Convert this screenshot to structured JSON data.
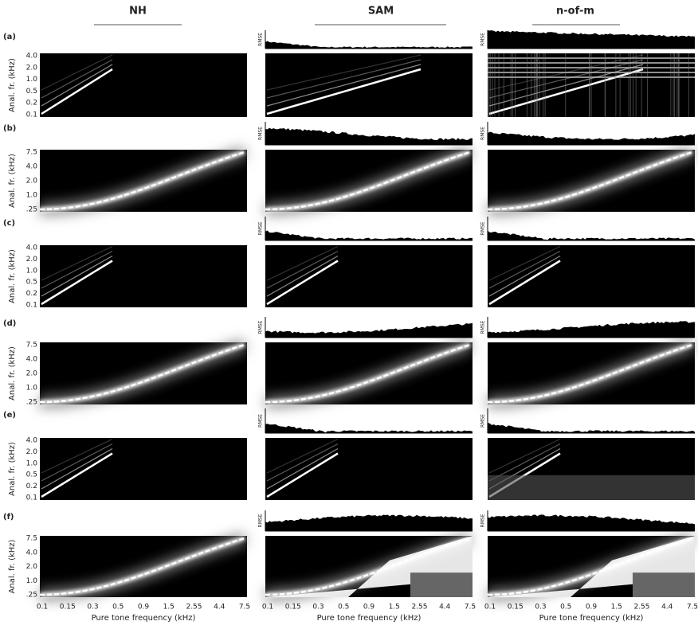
{
  "columns": [
    "NH",
    "SAM",
    "n-of-m"
  ],
  "rows": [
    {
      "label": "(a)",
      "y_ticks": [
        "4.0",
        "2.0",
        "1.0",
        "0.5",
        "0.2",
        "0.1"
      ]
    },
    {
      "label": "(b)",
      "y_ticks": [
        "7.5",
        "4.0",
        "2.0",
        "1.0",
        ".25"
      ]
    },
    {
      "label": "(c)",
      "y_ticks": [
        "4.0",
        "2.0",
        "1.0",
        "0.5",
        "0.2",
        "0.1"
      ]
    },
    {
      "label": "(d)",
      "y_ticks": [
        "7.5",
        "4.0",
        "2.0",
        "1.0",
        ".25"
      ]
    },
    {
      "label": "(e)",
      "y_ticks": [
        "4.0",
        "2.0",
        "1.0",
        "0.5",
        "0.2",
        "0.1"
      ]
    },
    {
      "label": "(f)",
      "y_ticks": [
        "7.5",
        "4.0",
        "2.0",
        "1.0",
        ".25"
      ]
    }
  ],
  "y_axis_label": "Anal. fr. (kHz)",
  "rmse_label": "RMSE",
  "x_ticks": [
    "0.1",
    "0.15",
    "0.3",
    "0.5",
    "0.9",
    "1.5",
    "2.55",
    "4.4",
    "7.5"
  ],
  "x_axis_label": "Pure tone frequency (kHz)"
}
